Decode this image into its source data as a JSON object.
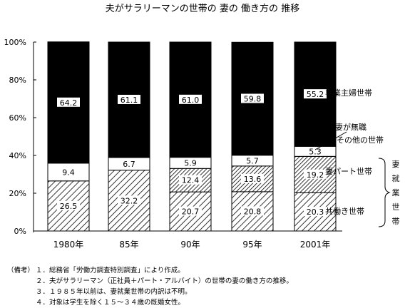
{
  "chart_data": {
    "type": "bar",
    "stacked": true,
    "title": "夫がサラリーマンの世帯の 妻の 働き方の 推移",
    "categories": [
      "1980年",
      "85年",
      "90年",
      "95年",
      "2001年"
    ],
    "y_ticks": [
      "0%",
      "20%",
      "40%",
      "60%",
      "80%",
      "100%"
    ],
    "ylim": [
      0,
      100
    ],
    "grid": false,
    "series": [
      {
        "name": "共働き世帯",
        "values": [
          26.5,
          32.2,
          20.7,
          20.8,
          20.3
        ],
        "labels": [
          "26.5",
          "32.2",
          "20.7",
          "20.8",
          "20.3"
        ],
        "fill": "hatch-diag"
      },
      {
        "name": "妻パート世帯",
        "values": [
          null,
          null,
          12.4,
          13.6,
          19.2
        ],
        "labels": [
          "",
          "",
          "12.4",
          "13.6",
          "19.2"
        ],
        "fill": "hatch-diag-dense"
      },
      {
        "name": "妻が無職その他の世帯",
        "values": [
          9.4,
          6.7,
          5.9,
          5.7,
          5.3
        ],
        "labels": [
          "9.4",
          "6.7",
          "5.9",
          "5.7",
          "5.3"
        ],
        "fill": "#ffffff"
      },
      {
        "name": "専業主婦世帯",
        "values": [
          64.2,
          61.1,
          61.0,
          59.8,
          55.2
        ],
        "labels": [
          "64.2",
          "61.1",
          "61.0",
          "59.8",
          "55.2"
        ],
        "fill": "#000000"
      }
    ],
    "side_labels": {
      "sengyo": "専業主婦世帯",
      "mushoku_1": "妻が無職",
      "mushoku_2": "その他の世帯",
      "part": "妻パート世帯",
      "tomobataraki": "共働き世帯",
      "bracket_chars": [
        "妻",
        "就",
        "業",
        "世",
        "帯"
      ]
    }
  },
  "notes": [
    {
      "prefix": "（備考）",
      "text": "１．総務省「労働力調査特別調査」により作成。"
    },
    {
      "prefix": "",
      "text": "２．夫がサラリーマン（正社員＋パート・アルバイト）の世帯の妻の働き方の推移。"
    },
    {
      "prefix": "",
      "text": "３．１９８５年以前は、妻就業世帯の内訳は不明。"
    },
    {
      "prefix": "",
      "text": "４．対象は学生を除く１５～３４歳の既婚女性。"
    }
  ]
}
